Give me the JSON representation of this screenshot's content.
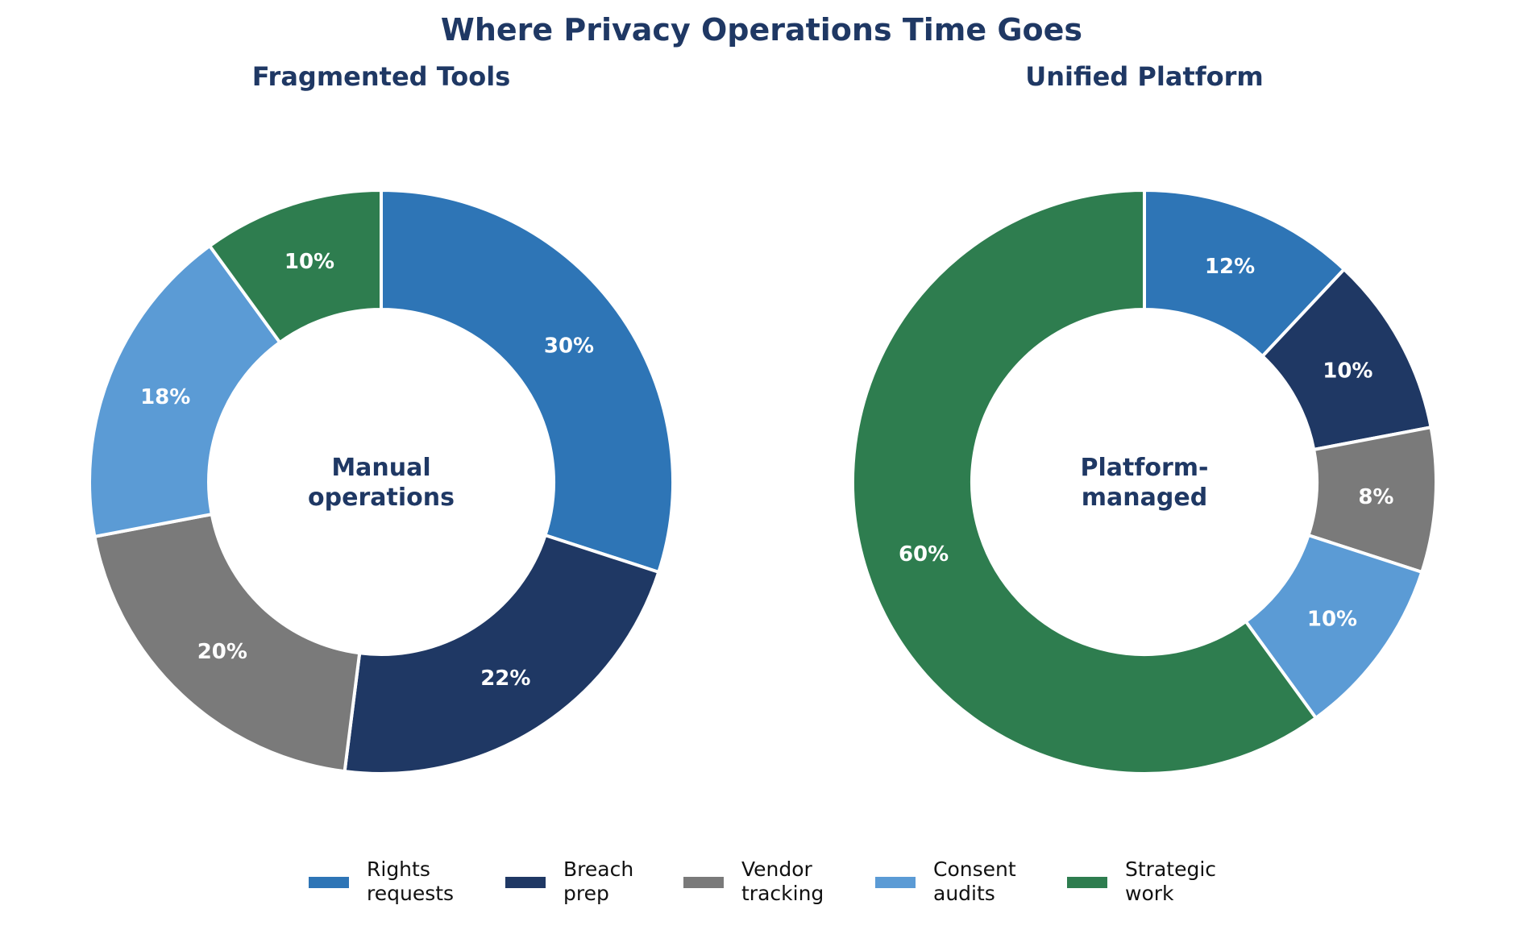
{
  "title": "Where Privacy Operations Time Goes",
  "legend": {
    "placement": "bottom-center",
    "entries": [
      {
        "lines": [
          "Rights",
          "requests"
        ],
        "color": "#2e75b6"
      },
      {
        "lines": [
          "Breach",
          "prep"
        ],
        "color": "#1f3864"
      },
      {
        "lines": [
          "Vendor",
          "tracking"
        ],
        "color": "#7a7a7a"
      },
      {
        "lines": [
          "Consent",
          "audits"
        ],
        "color": "#5b9bd5"
      },
      {
        "lines": [
          "Strategic",
          "work"
        ],
        "color": "#2e7d4f"
      }
    ]
  },
  "chart_data": [
    {
      "type": "pie",
      "style": "donut",
      "title": "Fragmented Tools",
      "center_text": [
        "Manual",
        "operations"
      ],
      "categories": [
        "Rights requests",
        "Breach prep",
        "Vendor tracking",
        "Consent audits",
        "Strategic work"
      ],
      "values": [
        30,
        22,
        20,
        18,
        10
      ],
      "labels": [
        "30%",
        "22%",
        "20%",
        "18%",
        "10%"
      ],
      "colors": [
        "#2e75b6",
        "#1f3864",
        "#7a7a7a",
        "#5b9bd5",
        "#2e7d4f"
      ]
    },
    {
      "type": "pie",
      "style": "donut",
      "title": "Unified Platform",
      "center_text": [
        "Platform-",
        "managed"
      ],
      "categories": [
        "Rights requests",
        "Breach prep",
        "Vendor tracking",
        "Consent audits",
        "Strategic work"
      ],
      "values": [
        12,
        10,
        8,
        10,
        60
      ],
      "labels": [
        "12%",
        "10%",
        "8%",
        "10%",
        "60%"
      ],
      "colors": [
        "#2e75b6",
        "#1f3864",
        "#7a7a7a",
        "#5b9bd5",
        "#2e7d4f"
      ]
    }
  ]
}
